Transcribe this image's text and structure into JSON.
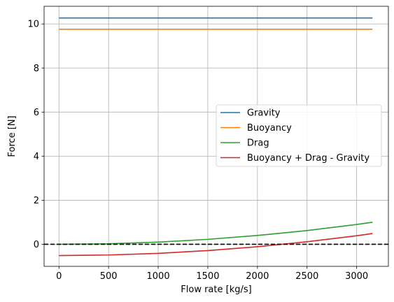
{
  "chart_data": {
    "type": "line",
    "title": "",
    "xlabel": "Flow rate [kg/s]",
    "ylabel": "Force [N]",
    "xlim": [
      -150,
      3320
    ],
    "ylim": [
      -1.0,
      10.8
    ],
    "xticks": [
      0,
      500,
      1000,
      1500,
      2000,
      2500,
      3000
    ],
    "yticks": [
      0,
      2,
      4,
      6,
      8,
      10
    ],
    "grid": true,
    "legend_position": "center-right",
    "reference_line": {
      "y": 0,
      "style": "dashed",
      "color": "#000000"
    },
    "series": [
      {
        "name": "Gravity",
        "color": "#1f77b4",
        "x": [
          0,
          3160
        ],
        "y": [
          10.27,
          10.27
        ]
      },
      {
        "name": "Buoyancy",
        "color": "#ff7f0e",
        "x": [
          0,
          3160
        ],
        "y": [
          9.76,
          9.76
        ]
      },
      {
        "name": "Drag",
        "color": "#2ca02c",
        "x": [
          0,
          500,
          1000,
          1500,
          2000,
          2500,
          3000,
          3160
        ],
        "y": [
          0.0,
          0.025,
          0.1,
          0.225,
          0.4,
          0.625,
          0.9,
          1.0
        ]
      },
      {
        "name": "Buoyancy + Drag - Gravity",
        "color": "#d62728",
        "x": [
          0,
          500,
          1000,
          1500,
          2000,
          2500,
          3000,
          3160
        ],
        "y": [
          -0.51,
          -0.485,
          -0.41,
          -0.285,
          -0.11,
          0.115,
          0.39,
          0.49
        ]
      }
    ]
  }
}
